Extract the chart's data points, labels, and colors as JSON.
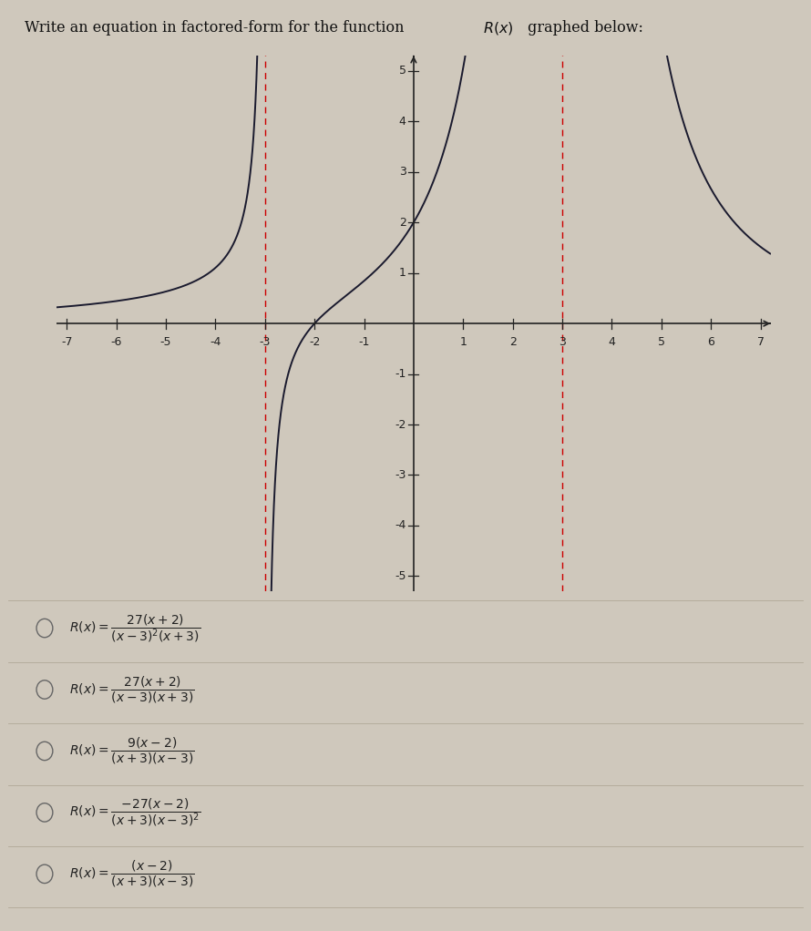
{
  "title_plain": "Write an equation in factored-form for the function ",
  "title_math": "$R(x)$",
  "title_end": " graphed below:",
  "xlim": [
    -7.2,
    7.2
  ],
  "ylim": [
    -5.3,
    5.3
  ],
  "xticks": [
    -7,
    -6,
    -5,
    -4,
    -3,
    -2,
    -1,
    1,
    2,
    3,
    4,
    5,
    6,
    7
  ],
  "yticks": [
    -5,
    -4,
    -3,
    -2,
    -1,
    1,
    2,
    3,
    4,
    5
  ],
  "asymptotes": [
    -3,
    3
  ],
  "bg_color": "#cfc8bc",
  "curve_color": "#1a1a2e",
  "asymptote_color": "#cc0000",
  "axis_color": "#222222",
  "choices": [
    "$R(x) = \\dfrac{27(x+2)}{(x-3)^2(x+3)}$",
    "$R(x) = \\dfrac{27(x+2)}{(x-3)(x+3)}$",
    "$R(x) = \\dfrac{9(x-2)}{(x+3)(x-3)}$",
    "$R(x) = \\dfrac{-27(x-2)}{(x+3)(x-3)^2}$",
    "$R(x) = \\dfrac{(x-2)}{(x+3)(x-3)}$"
  ]
}
